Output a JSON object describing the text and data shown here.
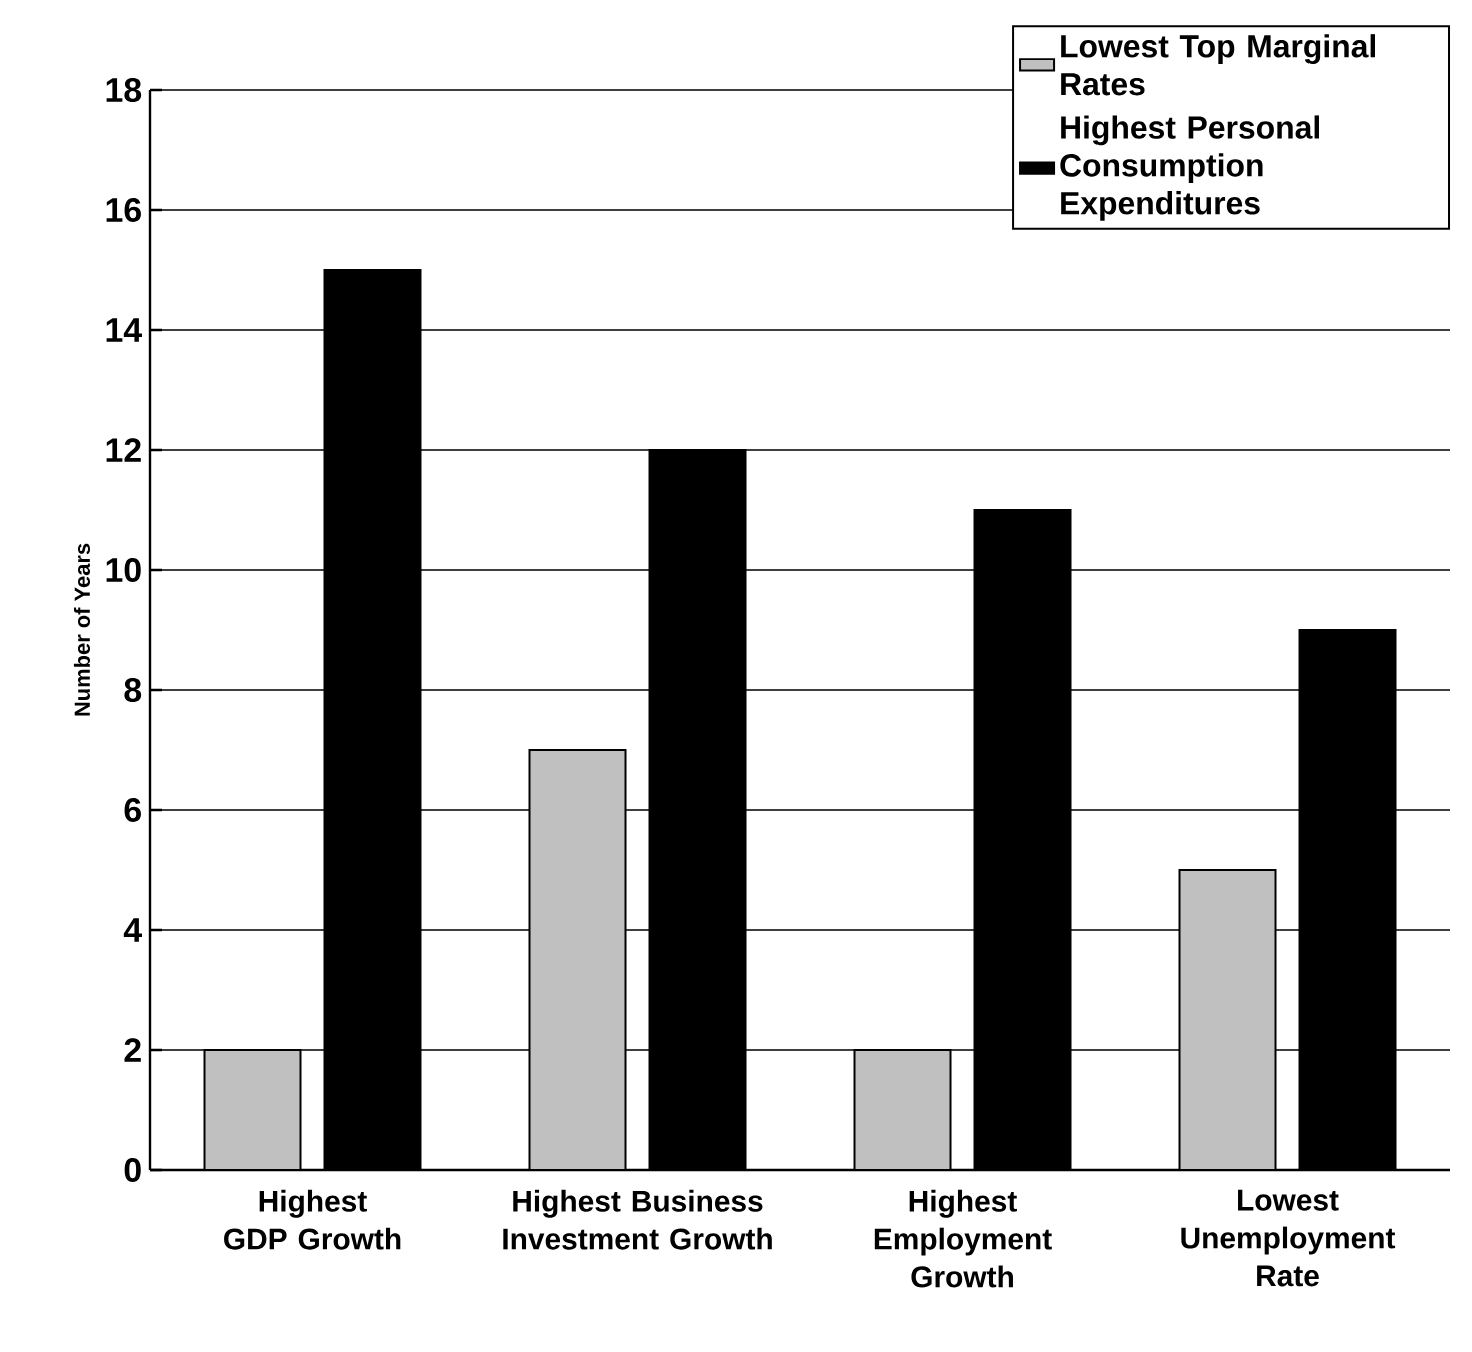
{
  "chart_data": {
    "type": "bar",
    "ylabel": "Number of Years",
    "categories": [
      "Highest GDP Growth",
      "Highest Business Investment Growth",
      "Highest Employment Growth",
      "Lowest Unemployment Rate"
    ],
    "series": [
      {
        "name": "Lowest Top Marginal Rates",
        "color": "#c0c0c0",
        "values": [
          2,
          7,
          2,
          5
        ]
      },
      {
        "name": "Highest Personal Consumption Expenditures",
        "color": "#000000",
        "values": [
          15,
          12,
          11,
          9
        ]
      }
    ],
    "ylim": [
      0,
      18
    ],
    "yticks": [
      0,
      2,
      4,
      6,
      8,
      10,
      12,
      14,
      16,
      18
    ],
    "grid": "y",
    "legend": "top right"
  }
}
